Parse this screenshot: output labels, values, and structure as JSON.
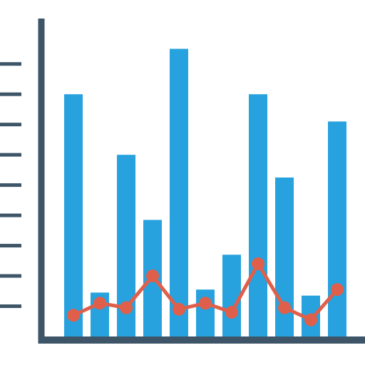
{
  "chart_data": {
    "type": "bar",
    "categories": [
      "",
      "",
      "",
      "",
      "",
      "",
      "",
      "",
      "",
      "",
      ""
    ],
    "series": [
      {
        "kind": "bar",
        "values": [
          8.0,
          1.45,
          6.0,
          3.85,
          9.5,
          1.55,
          2.7,
          8.0,
          5.25,
          1.35,
          7.1
        ]
      },
      {
        "kind": "line",
        "values": [
          0.7,
          1.1,
          0.95,
          2.0,
          0.9,
          1.1,
          0.8,
          2.4,
          0.95,
          0.55,
          1.55
        ]
      }
    ],
    "ylim": [
      0,
      10.5
    ],
    "y_ticks": [
      1,
      2,
      3,
      4,
      5,
      6,
      7,
      8,
      9
    ],
    "grid": false,
    "legend": "none",
    "colors": {
      "axis": "#3d5567",
      "bar": "#27a2de",
      "line": "#df5f4a"
    }
  }
}
